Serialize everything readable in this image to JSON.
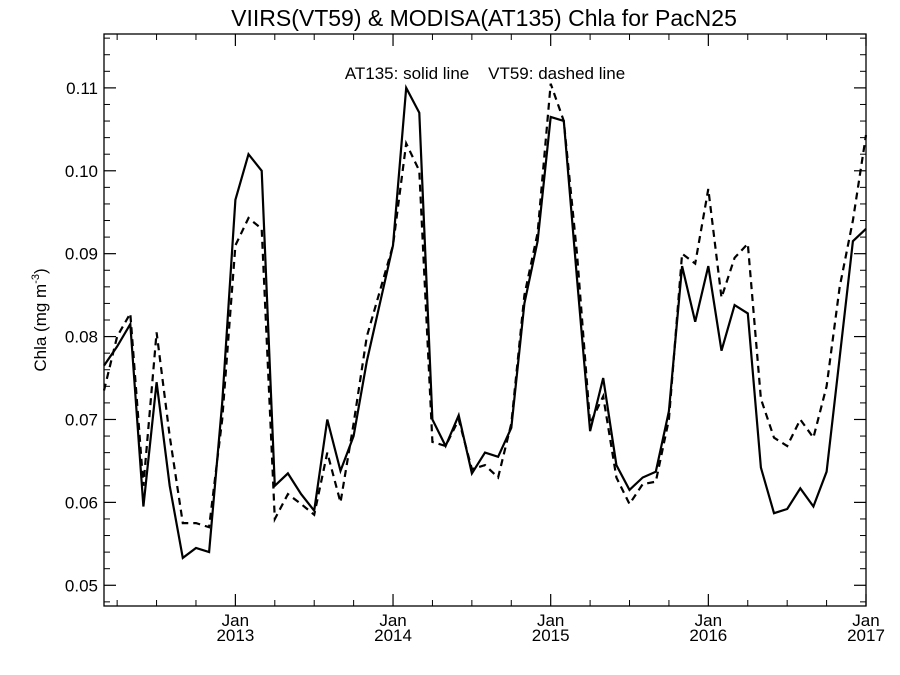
{
  "chart_data": {
    "type": "line",
    "title": "VIIRS(VT59) & MODISA(AT135)  Chla for PacN25",
    "xlabel": "",
    "ylabel": "Chla (mg m",
    "ylabel_sup": "-3",
    "ylabel_close": ")",
    "annotation": "AT135: solid line    VT59: dashed line",
    "ylim": [
      0.0475,
      0.1165
    ],
    "yticks": [
      0.05,
      0.06,
      0.07,
      0.08,
      0.09,
      0.1,
      0.11
    ],
    "ytick_labels": [
      "0.05",
      "0.06",
      "0.07",
      "0.08",
      "0.09",
      "0.10",
      "0.11"
    ],
    "x_unit": "months since Jan 2012",
    "xlim": [
      2,
      60
    ],
    "xticks": [
      {
        "x": 12,
        "month": "Jan",
        "year": "2013"
      },
      {
        "x": 24,
        "month": "Jan",
        "year": "2014"
      },
      {
        "x": 36,
        "month": "Jan",
        "year": "2015"
      },
      {
        "x": 48,
        "month": "Jan",
        "year": "2016"
      },
      {
        "x": 60,
        "month": "Jan",
        "year": "2017"
      }
    ],
    "grid": false,
    "series": [
      {
        "name": "AT135",
        "style": "solid",
        "x": [
          2,
          3,
          4,
          5,
          6,
          7,
          8,
          9,
          10,
          11,
          12,
          13,
          14,
          15,
          16,
          17,
          18,
          19,
          20,
          21,
          22,
          23,
          24,
          25,
          26,
          27,
          28,
          29,
          30,
          31,
          32,
          33,
          34,
          35,
          36,
          37,
          38,
          39,
          40,
          41,
          42,
          43,
          44,
          45,
          46,
          47,
          48,
          49,
          50,
          51,
          52,
          53,
          54,
          55,
          56,
          57,
          58,
          59,
          60
        ],
        "values": [
          0.0765,
          0.0788,
          0.0815,
          0.0595,
          0.0745,
          0.062,
          0.0533,
          0.0545,
          0.054,
          0.072,
          0.0965,
          0.102,
          0.1,
          0.062,
          0.0635,
          0.061,
          0.059,
          0.07,
          0.0638,
          0.068,
          0.077,
          0.084,
          0.091,
          0.11,
          0.107,
          0.07,
          0.0668,
          0.0705,
          0.0635,
          0.066,
          0.0655,
          0.069,
          0.084,
          0.0915,
          0.1065,
          0.106,
          0.087,
          0.0686,
          0.075,
          0.0645,
          0.0615,
          0.063,
          0.0637,
          0.071,
          0.0885,
          0.0818,
          0.0885,
          0.0783,
          0.0838,
          0.0828,
          0.0642,
          0.0587,
          0.0592,
          0.0617,
          0.0595,
          0.0637,
          0.0775,
          0.0915,
          0.093
        ]
      },
      {
        "name": "VT59",
        "style": "dashed",
        "x": [
          2,
          3,
          4,
          5,
          6,
          7,
          8,
          9,
          10,
          11,
          12,
          13,
          14,
          15,
          16,
          17,
          18,
          19,
          20,
          21,
          22,
          23,
          24,
          25,
          26,
          27,
          28,
          29,
          30,
          31,
          32,
          33,
          34,
          35,
          36,
          37,
          38,
          39,
          40,
          41,
          42,
          43,
          44,
          45,
          46,
          47,
          48,
          49,
          50,
          51,
          52,
          53,
          54,
          55,
          56,
          57,
          58,
          59,
          60
        ],
        "values": [
          0.0735,
          0.08,
          0.0828,
          0.062,
          0.0805,
          0.068,
          0.0575,
          0.0575,
          0.057,
          0.07,
          0.091,
          0.0943,
          0.093,
          0.058,
          0.061,
          0.0598,
          0.0585,
          0.066,
          0.06,
          0.0695,
          0.08,
          0.0855,
          0.091,
          0.1033,
          0.1,
          0.0673,
          0.0668,
          0.07,
          0.064,
          0.0645,
          0.063,
          0.0695,
          0.085,
          0.0925,
          0.1105,
          0.106,
          0.09,
          0.0695,
          0.0728,
          0.063,
          0.0598,
          0.0622,
          0.0625,
          0.07,
          0.09,
          0.0888,
          0.0978,
          0.0847,
          0.0895,
          0.0912,
          0.0725,
          0.0678,
          0.0668,
          0.07,
          0.0678,
          0.074,
          0.086,
          0.094,
          0.1043
        ]
      }
    ]
  },
  "colors": {
    "line": "#000000",
    "background": "#ffffff"
  }
}
